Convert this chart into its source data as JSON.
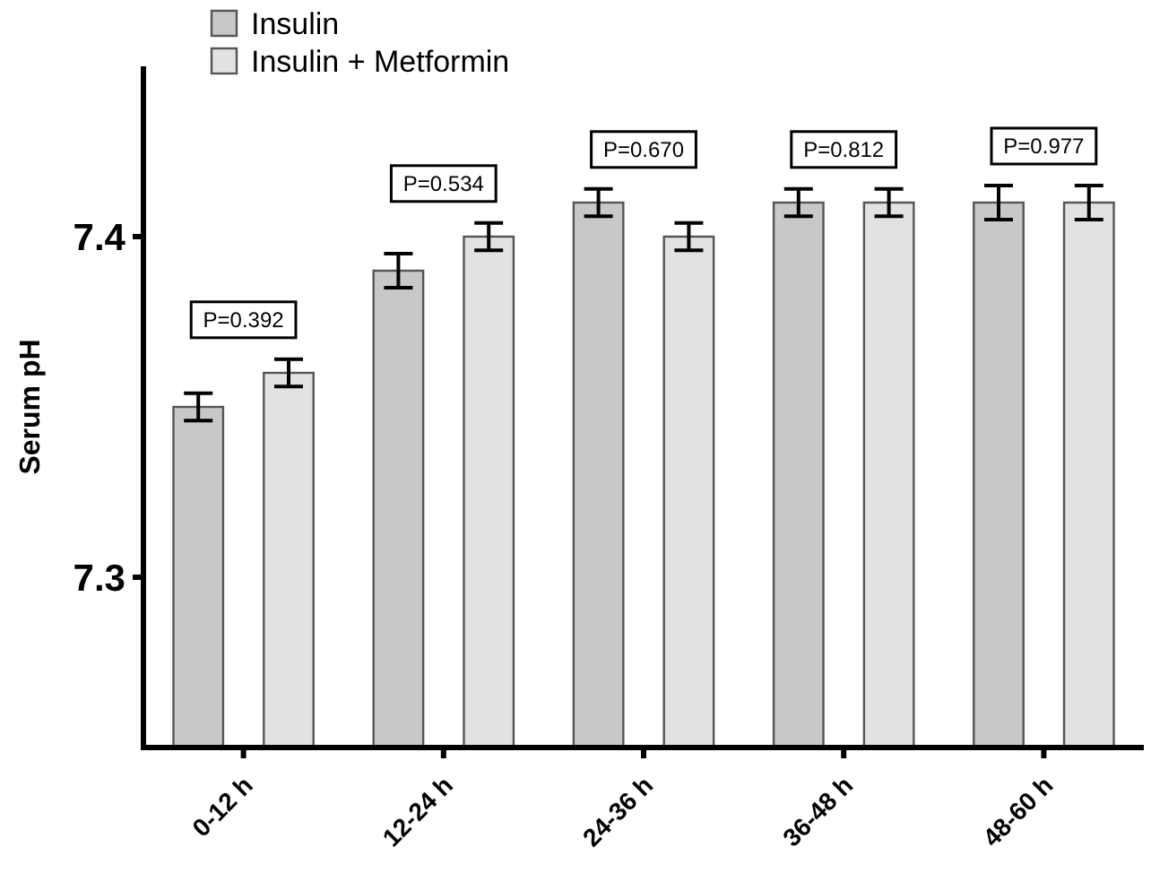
{
  "chart_data": {
    "type": "bar",
    "ylabel": "Serum pH",
    "categories": [
      "0-12 h",
      "12-24 h",
      "24-36 h",
      "36-48 h",
      "48-60 h"
    ],
    "series": [
      {
        "name": "Insulin",
        "color": "#c8c8c8",
        "values": [
          7.35,
          7.39,
          7.41,
          7.41,
          7.41
        ],
        "errors": [
          0.004,
          0.005,
          0.004,
          0.004,
          0.005
        ]
      },
      {
        "name": "Insulin + Metformin",
        "color": "#e2e2e2",
        "values": [
          7.36,
          7.4,
          7.4,
          7.41,
          7.41
        ],
        "errors": [
          0.004,
          0.004,
          0.004,
          0.004,
          0.005
        ]
      }
    ],
    "annotations": [
      "P=0.392",
      "P=0.534",
      "P=0.670",
      "P=0.812",
      "P=0.977"
    ],
    "ylim": [
      7.25,
      7.45
    ],
    "yticks": [
      7.3,
      7.4
    ],
    "grid": false,
    "legend": "top left"
  }
}
